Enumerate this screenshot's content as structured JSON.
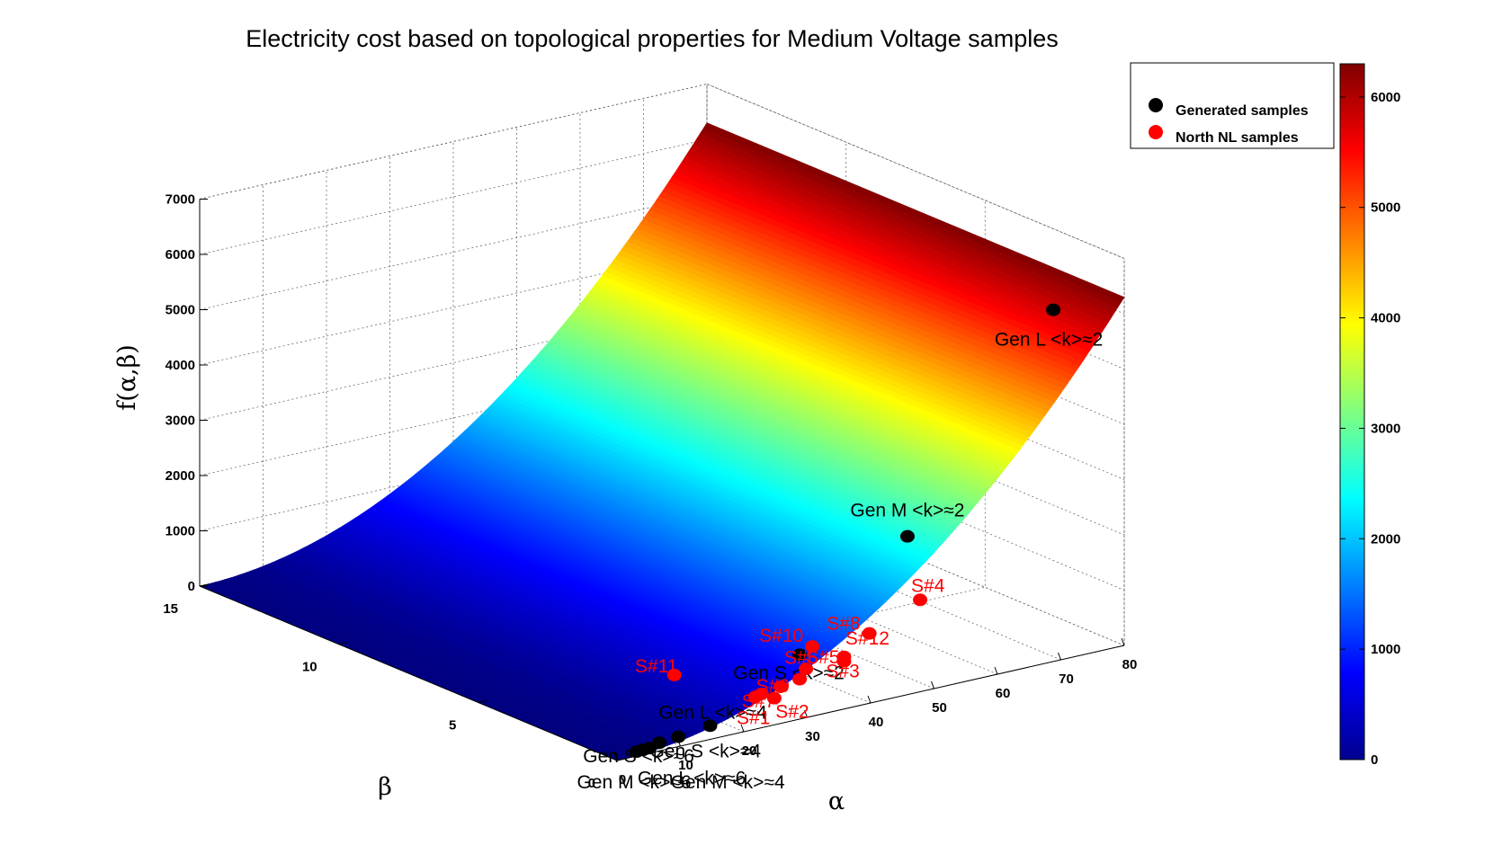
{
  "chart_data": {
    "type": "surface3d",
    "title": "Electricity cost based on topological properties for Medium Voltage samples",
    "xlabel": "α",
    "ylabel": "β",
    "zlabel": "f(α,β)",
    "xlim": [
      0,
      80
    ],
    "ylim": [
      0,
      15
    ],
    "zlim": [
      0,
      7000
    ],
    "x_ticks": [
      "0",
      "10",
      "20",
      "30",
      "40",
      "50",
      "60",
      "70",
      "80"
    ],
    "y_ticks": [
      "0",
      "5",
      "10",
      "15"
    ],
    "z_ticks": [
      "0",
      "1000",
      "2000",
      "3000",
      "4000",
      "5000",
      "6000",
      "7000"
    ],
    "grid": true,
    "colormap": "jet",
    "colorbar": {
      "range": [
        0,
        6300
      ],
      "ticks": [
        "0",
        "1000",
        "2000",
        "3000",
        "4000",
        "5000",
        "6000"
      ]
    },
    "legend": {
      "position": "top-right",
      "entries": [
        {
          "label": "Generated samples",
          "color": "#000000"
        },
        {
          "label": "North NL samples",
          "color": "#ff0000"
        }
      ]
    },
    "series": [
      {
        "name": "Generated samples",
        "color": "#000000",
        "points": [
          {
            "label": "Gen L <k>≈2",
            "alpha": 71,
            "beta": 0.5,
            "z": 6200
          },
          {
            "label": "Gen M <k>≈2",
            "alpha": 48,
            "beta": 0.5,
            "z": 2700
          },
          {
            "label": "Gen S <k>≈2",
            "alpha": 31,
            "beta": 0.5,
            "z": 1000
          },
          {
            "label": "Gen L <k>≈4",
            "alpha": 16,
            "beta": 0.3,
            "z": 150
          },
          {
            "label": "Gen S <k>≈4",
            "alpha": 11,
            "beta": 0.3,
            "z": 80
          },
          {
            "label": "Gen M <k>≈4",
            "alpha": 8,
            "beta": 0.3,
            "z": 50
          },
          {
            "label": "Gen S <k>≈6",
            "alpha": 5,
            "beta": 0.2,
            "z": 20
          },
          {
            "label": "Gen M <k>≈6",
            "alpha": 4,
            "beta": 0.2,
            "z": 15
          },
          {
            "label": "Gen L <k>≈6",
            "alpha": 6,
            "beta": 0.2,
            "z": 25
          }
        ]
      },
      {
        "name": "North NL samples",
        "color": "#ff0000",
        "points": [
          {
            "label": "S#1",
            "alpha": 24,
            "beta": 0.5,
            "z": 420
          },
          {
            "label": "S#2",
            "alpha": 27,
            "beta": 0.5,
            "z": 320
          },
          {
            "label": "S#3",
            "alpha": 38,
            "beta": 0.5,
            "z": 700
          },
          {
            "label": "S#4",
            "alpha": 50,
            "beta": 0.5,
            "z": 1500
          },
          {
            "label": "S#5",
            "alpha": 32,
            "beta": 0.5,
            "z": 720
          },
          {
            "label": "S#6",
            "alpha": 31,
            "beta": 0.5,
            "z": 560
          },
          {
            "label": "S#7",
            "alpha": 25,
            "beta": 0.5,
            "z": 450
          },
          {
            "label": "S#8",
            "alpha": 42,
            "beta": 0.5,
            "z": 1100
          },
          {
            "label": "S#9",
            "alpha": 28,
            "beta": 0.5,
            "z": 500
          },
          {
            "label": "S#10",
            "alpha": 33,
            "beta": 0.5,
            "z": 1100
          },
          {
            "label": "S#11",
            "alpha": 20,
            "beta": 2.5,
            "z": 500
          },
          {
            "label": "S#12",
            "alpha": 38,
            "beta": 0.5,
            "z": 780
          }
        ]
      }
    ]
  }
}
